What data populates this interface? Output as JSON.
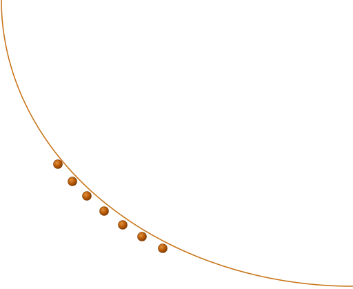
{
  "diagram": {
    "kind": "quarter-circle arc with beads",
    "arc": {
      "color": "#c8761a",
      "start_angle_deg": 180,
      "end_angle_deg": 270
    },
    "beads": {
      "count": 7,
      "color": "#b85a08",
      "highlight_color": "#e2923a",
      "outline_color": "#7a3a00"
    }
  }
}
